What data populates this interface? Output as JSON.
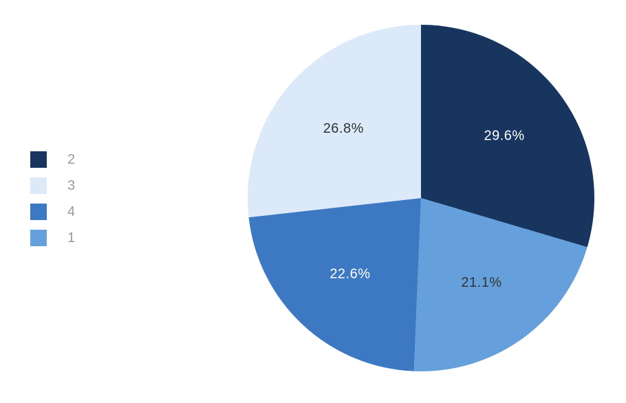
{
  "chart_data": {
    "type": "pie",
    "slices": [
      {
        "label": "2",
        "value": 29.6,
        "display": "29.6%",
        "color": "#17355f",
        "text_color": "#ffffff"
      },
      {
        "label": "1",
        "value": 21.1,
        "display": "21.1%",
        "color": "#65a0dc",
        "text_color": "#333333"
      },
      {
        "label": "4",
        "value": 22.6,
        "display": "22.6%",
        "color": "#3d78c2",
        "text_color": "#ffffff"
      },
      {
        "label": "3",
        "value": 26.8,
        "display": "26.8%",
        "color": "#dce9f8",
        "text_color": "#333333"
      }
    ],
    "legend": {
      "placement": "left",
      "order": [
        "2",
        "3",
        "4",
        "1"
      ]
    },
    "start_angle": "12 o'clock",
    "direction": "clockwise"
  }
}
